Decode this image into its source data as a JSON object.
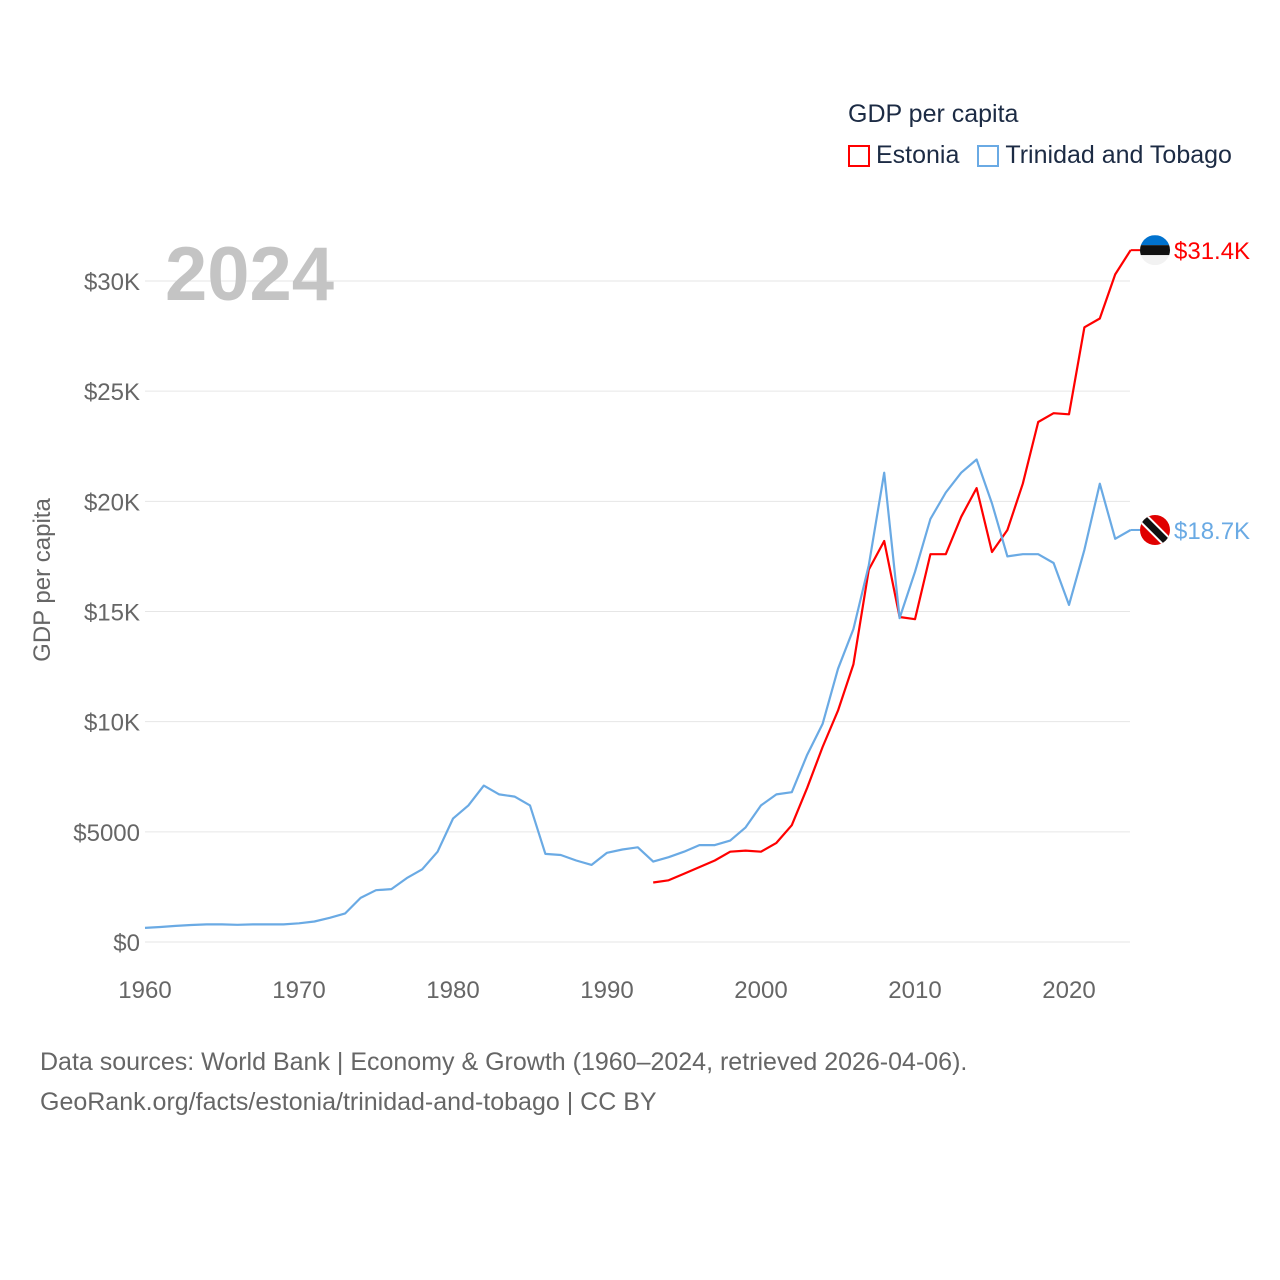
{
  "chart_data": {
    "type": "line",
    "title": "GDP per capita",
    "year_label": "2024",
    "ylabel": "GDP per capita",
    "xlabel": "",
    "xlim": [
      1960,
      2024
    ],
    "ylim": [
      0,
      32000
    ],
    "x_ticks": [
      1960,
      1970,
      1980,
      1990,
      2000,
      2010,
      2020
    ],
    "x_tick_labels": [
      "1960",
      "1970",
      "1980",
      "1990",
      "2000",
      "2010",
      "2020"
    ],
    "y_ticks": [
      0,
      5000,
      10000,
      15000,
      20000,
      25000,
      30000
    ],
    "y_tick_labels": [
      "$0",
      "$5000",
      "$10K",
      "$15K",
      "$20K",
      "$25K",
      "$30K"
    ],
    "grid": true,
    "legend_placement": "top-right",
    "series": [
      {
        "name": "Estonia",
        "color": "#ff0000",
        "end_label": "$31.4K",
        "flag": "estonia-flag",
        "start_year": 1993,
        "values": [
          2700,
          2800,
          3100,
          3400,
          3700,
          4100,
          4150,
          4100,
          4500,
          5300,
          7000,
          8850,
          10500,
          12600,
          16900,
          18200,
          14750,
          14650,
          17600,
          17600,
          19300,
          20600,
          17700,
          18700,
          20800,
          23600,
          24000,
          23950,
          27900,
          28300,
          30300,
          31400
        ]
      },
      {
        "name": "Trinidad and Tobago",
        "color": "#6aaae4",
        "end_label": "$18.7K",
        "flag": "trinidad-and-tobago-flag",
        "start_year": 1960,
        "values": [
          640,
          680,
          730,
          770,
          800,
          800,
          780,
          800,
          800,
          800,
          850,
          930,
          1100,
          1300,
          2000,
          2350,
          2400,
          2900,
          3300,
          4100,
          5600,
          6200,
          7100,
          6700,
          6600,
          6200,
          4000,
          3950,
          3700,
          3500,
          4050,
          4200,
          4300,
          3650,
          3850,
          4100,
          4400,
          4400,
          4600,
          5200,
          6200,
          6700,
          6800,
          8500,
          9900,
          12400,
          14200,
          17100,
          21300,
          14700,
          16800,
          19200,
          20400,
          21300,
          21900,
          19900,
          17500,
          17600,
          17600,
          17200,
          15300,
          17800,
          20800,
          18300,
          18700
        ]
      }
    ]
  },
  "footer": {
    "line1": "Data sources: World Bank | Economy & Growth (1960–2024, retrieved 2026-04-06).",
    "line2": "GeoRank.org/facts/estonia/trinidad-and-tobago | CC BY"
  }
}
